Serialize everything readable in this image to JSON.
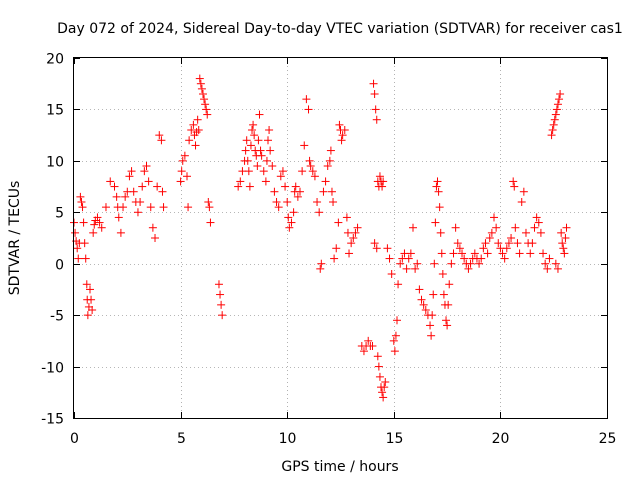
{
  "chart_data": {
    "type": "scatter",
    "title": "Day 072 of 2024, Sidereal Day-to-day VTEC variation (SDTVAR) for receiver cas1",
    "xlabel": "GPS time / hours",
    "ylabel": "SDTVAR / TECUs",
    "xlim": [
      0,
      25
    ],
    "ylim": [
      -15,
      20
    ],
    "xticks": [
      "0",
      "5",
      "10",
      "15",
      "20",
      "25"
    ],
    "yticks": [
      "-15",
      "-10",
      "-5",
      "0",
      "5",
      "10",
      "15",
      "20"
    ],
    "grid": true,
    "marker": "+",
    "color": "#ff0000",
    "series": [
      {
        "name": "SDTVAR",
        "points": [
          [
            0.0,
            4.0
          ],
          [
            0.05,
            3.0
          ],
          [
            0.1,
            2.2
          ],
          [
            0.15,
            1.5
          ],
          [
            0.2,
            0.5
          ],
          [
            0.25,
            2.0
          ],
          [
            0.3,
            6.5
          ],
          [
            0.35,
            6.0
          ],
          [
            0.4,
            5.5
          ],
          [
            0.45,
            4.0
          ],
          [
            0.5,
            2.0
          ],
          [
            0.55,
            0.5
          ],
          [
            0.6,
            -2.0
          ],
          [
            0.62,
            -3.5
          ],
          [
            0.65,
            -5.0
          ],
          [
            0.7,
            -4.2
          ],
          [
            0.75,
            -2.5
          ],
          [
            0.8,
            -3.5
          ],
          [
            0.85,
            -4.5
          ],
          [
            0.9,
            3.0
          ],
          [
            0.95,
            3.8
          ],
          [
            1.0,
            4.2
          ],
          [
            1.1,
            4.5
          ],
          [
            1.2,
            4.0
          ],
          [
            1.3,
            3.5
          ],
          [
            1.5,
            5.5
          ],
          [
            1.7,
            8.0
          ],
          [
            1.9,
            7.5
          ],
          [
            2.0,
            6.5
          ],
          [
            2.05,
            5.5
          ],
          [
            2.1,
            4.5
          ],
          [
            2.2,
            3.0
          ],
          [
            2.3,
            5.5
          ],
          [
            2.4,
            6.5
          ],
          [
            2.5,
            7.0
          ],
          [
            2.6,
            8.5
          ],
          [
            2.7,
            9.0
          ],
          [
            2.8,
            7.0
          ],
          [
            2.9,
            6.0
          ],
          [
            3.0,
            5.0
          ],
          [
            3.1,
            6.0
          ],
          [
            3.2,
            7.5
          ],
          [
            3.3,
            9.0
          ],
          [
            3.4,
            9.5
          ],
          [
            3.5,
            8.0
          ],
          [
            3.6,
            5.5
          ],
          [
            3.7,
            3.5
          ],
          [
            3.8,
            2.5
          ],
          [
            3.9,
            7.5
          ],
          [
            4.0,
            12.5
          ],
          [
            4.1,
            12.0
          ],
          [
            4.15,
            7.0
          ],
          [
            4.2,
            5.5
          ],
          [
            5.0,
            8.0
          ],
          [
            5.05,
            9.0
          ],
          [
            5.1,
            10.0
          ],
          [
            5.2,
            10.5
          ],
          [
            5.3,
            8.5
          ],
          [
            5.35,
            5.5
          ],
          [
            5.4,
            12.0
          ],
          [
            5.5,
            13.0
          ],
          [
            5.6,
            13.5
          ],
          [
            5.65,
            12.5
          ],
          [
            5.7,
            11.5
          ],
          [
            5.75,
            12.8
          ],
          [
            5.8,
            14.0
          ],
          [
            5.85,
            13.0
          ],
          [
            5.9,
            18.0
          ],
          [
            5.95,
            17.5
          ],
          [
            6.0,
            17.0
          ],
          [
            6.05,
            16.5
          ],
          [
            6.1,
            16.0
          ],
          [
            6.15,
            15.5
          ],
          [
            6.2,
            15.0
          ],
          [
            6.25,
            14.5
          ],
          [
            6.3,
            6.0
          ],
          [
            6.35,
            5.5
          ],
          [
            6.4,
            4.0
          ],
          [
            6.8,
            -2.0
          ],
          [
            6.85,
            -3.0
          ],
          [
            6.9,
            -4.0
          ],
          [
            6.95,
            -5.0
          ],
          [
            7.7,
            7.5
          ],
          [
            7.8,
            8.0
          ],
          [
            7.9,
            9.0
          ],
          [
            8.0,
            10.0
          ],
          [
            8.05,
            11.0
          ],
          [
            8.1,
            12.0
          ],
          [
            8.15,
            10.0
          ],
          [
            8.2,
            9.0
          ],
          [
            8.25,
            7.5
          ],
          [
            8.3,
            11.5
          ],
          [
            8.35,
            13.0
          ],
          [
            8.4,
            13.5
          ],
          [
            8.45,
            12.5
          ],
          [
            8.5,
            11.0
          ],
          [
            8.55,
            10.5
          ],
          [
            8.6,
            9.5
          ],
          [
            8.65,
            12.0
          ],
          [
            8.7,
            14.5
          ],
          [
            8.75,
            11.0
          ],
          [
            8.8,
            10.5
          ],
          [
            8.9,
            9.0
          ],
          [
            9.0,
            8.0
          ],
          [
            9.05,
            10.0
          ],
          [
            9.1,
            12.0
          ],
          [
            9.15,
            13.0
          ],
          [
            9.2,
            11.0
          ],
          [
            9.3,
            9.5
          ],
          [
            9.4,
            7.0
          ],
          [
            9.5,
            6.0
          ],
          [
            9.6,
            5.5
          ],
          [
            9.7,
            8.5
          ],
          [
            9.8,
            9.0
          ],
          [
            9.9,
            7.5
          ],
          [
            10.0,
            6.0
          ],
          [
            10.05,
            4.5
          ],
          [
            10.1,
            3.5
          ],
          [
            10.2,
            4.0
          ],
          [
            10.3,
            5.0
          ],
          [
            10.35,
            7.0
          ],
          [
            10.4,
            7.5
          ],
          [
            10.5,
            6.5
          ],
          [
            10.6,
            7.0
          ],
          [
            10.7,
            9.0
          ],
          [
            10.8,
            11.5
          ],
          [
            10.9,
            16.0
          ],
          [
            11.0,
            15.0
          ],
          [
            11.05,
            10.0
          ],
          [
            11.1,
            9.5
          ],
          [
            11.2,
            9.0
          ],
          [
            11.3,
            8.5
          ],
          [
            11.4,
            6.0
          ],
          [
            11.5,
            5.0
          ],
          [
            11.55,
            -0.5
          ],
          [
            11.6,
            0.0
          ],
          [
            11.7,
            7.0
          ],
          [
            11.8,
            8.0
          ],
          [
            11.9,
            9.5
          ],
          [
            12.0,
            10.0
          ],
          [
            12.05,
            11.0
          ],
          [
            12.1,
            7.0
          ],
          [
            12.15,
            6.0
          ],
          [
            12.2,
            0.5
          ],
          [
            12.3,
            1.5
          ],
          [
            12.4,
            4.0
          ],
          [
            12.45,
            13.5
          ],
          [
            12.5,
            13.0
          ],
          [
            12.55,
            12.0
          ],
          [
            12.6,
            12.5
          ],
          [
            12.7,
            13.0
          ],
          [
            12.8,
            4.5
          ],
          [
            12.85,
            3.0
          ],
          [
            12.9,
            1.0
          ],
          [
            13.0,
            2.0
          ],
          [
            13.1,
            2.5
          ],
          [
            13.2,
            3.0
          ],
          [
            13.3,
            3.5
          ],
          [
            13.5,
            -8.0
          ],
          [
            13.6,
            -8.5
          ],
          [
            13.7,
            -8.0
          ],
          [
            13.8,
            -7.5
          ],
          [
            13.9,
            -8.0
          ],
          [
            14.0,
            -8.0
          ],
          [
            14.05,
            17.5
          ],
          [
            14.1,
            16.5
          ],
          [
            14.15,
            15.0
          ],
          [
            14.2,
            14.0
          ],
          [
            14.25,
            8.0
          ],
          [
            14.3,
            7.5
          ],
          [
            14.35,
            8.5
          ],
          [
            14.4,
            8.0
          ],
          [
            14.45,
            7.5
          ],
          [
            14.5,
            8.0
          ],
          [
            14.1,
            2.0
          ],
          [
            14.2,
            1.5
          ],
          [
            14.25,
            -9.0
          ],
          [
            14.3,
            -10.0
          ],
          [
            14.35,
            -11.0
          ],
          [
            14.4,
            -12.0
          ],
          [
            14.45,
            -12.5
          ],
          [
            14.5,
            -13.0
          ],
          [
            14.55,
            -12.0
          ],
          [
            14.6,
            -11.5
          ],
          [
            14.7,
            1.5
          ],
          [
            14.8,
            0.5
          ],
          [
            14.9,
            -1.0
          ],
          [
            15.0,
            -7.5
          ],
          [
            15.05,
            -8.5
          ],
          [
            15.1,
            -7.0
          ],
          [
            15.15,
            -5.5
          ],
          [
            15.2,
            -2.0
          ],
          [
            15.3,
            0.0
          ],
          [
            15.4,
            0.5
          ],
          [
            15.5,
            1.0
          ],
          [
            15.6,
            -0.5
          ],
          [
            15.7,
            0.5
          ],
          [
            15.8,
            1.0
          ],
          [
            15.9,
            3.5
          ],
          [
            16.0,
            -0.5
          ],
          [
            16.1,
            0.0
          ],
          [
            16.2,
            -2.5
          ],
          [
            16.3,
            -3.5
          ],
          [
            16.4,
            -4.0
          ],
          [
            16.5,
            -4.5
          ],
          [
            16.6,
            -5.0
          ],
          [
            16.7,
            -6.0
          ],
          [
            16.75,
            -7.0
          ],
          [
            16.8,
            -5.0
          ],
          [
            16.85,
            -3.0
          ],
          [
            16.9,
            0.0
          ],
          [
            16.95,
            4.0
          ],
          [
            17.0,
            7.5
          ],
          [
            17.05,
            8.0
          ],
          [
            17.1,
            7.0
          ],
          [
            17.15,
            5.5
          ],
          [
            17.2,
            3.0
          ],
          [
            17.25,
            1.0
          ],
          [
            17.3,
            -1.0
          ],
          [
            17.35,
            -3.0
          ],
          [
            17.4,
            -4.0
          ],
          [
            17.45,
            -5.5
          ],
          [
            17.5,
            -6.0
          ],
          [
            17.55,
            -4.0
          ],
          [
            17.6,
            -2.0
          ],
          [
            17.7,
            0.0
          ],
          [
            17.8,
            1.0
          ],
          [
            17.9,
            3.5
          ],
          [
            18.0,
            2.0
          ],
          [
            18.1,
            1.5
          ],
          [
            18.2,
            1.0
          ],
          [
            18.3,
            0.5
          ],
          [
            18.4,
            0.0
          ],
          [
            18.5,
            -0.5
          ],
          [
            18.6,
            0.0
          ],
          [
            18.7,
            0.5
          ],
          [
            18.8,
            1.0
          ],
          [
            18.9,
            0.5
          ],
          [
            19.0,
            0.0
          ],
          [
            19.1,
            0.5
          ],
          [
            19.2,
            1.5
          ],
          [
            19.3,
            2.0
          ],
          [
            19.4,
            1.0
          ],
          [
            19.5,
            2.5
          ],
          [
            19.6,
            3.0
          ],
          [
            19.7,
            4.5
          ],
          [
            19.8,
            3.5
          ],
          [
            19.9,
            2.0
          ],
          [
            20.0,
            1.5
          ],
          [
            20.1,
            1.0
          ],
          [
            20.2,
            0.5
          ],
          [
            20.3,
            1.5
          ],
          [
            20.4,
            2.0
          ],
          [
            20.5,
            2.5
          ],
          [
            20.6,
            8.0
          ],
          [
            20.65,
            7.5
          ],
          [
            20.7,
            3.5
          ],
          [
            20.8,
            2.0
          ],
          [
            20.9,
            1.0
          ],
          [
            21.0,
            6.0
          ],
          [
            21.1,
            7.0
          ],
          [
            21.2,
            3.0
          ],
          [
            21.3,
            2.0
          ],
          [
            21.4,
            1.0
          ],
          [
            21.5,
            2.0
          ],
          [
            21.6,
            3.5
          ],
          [
            21.7,
            4.5
          ],
          [
            21.8,
            4.0
          ],
          [
            21.9,
            3.0
          ],
          [
            22.0,
            1.0
          ],
          [
            22.1,
            0.0
          ],
          [
            22.2,
            -0.5
          ],
          [
            22.3,
            0.5
          ],
          [
            22.4,
            12.5
          ],
          [
            22.45,
            13.0
          ],
          [
            22.5,
            13.5
          ],
          [
            22.55,
            14.0
          ],
          [
            22.6,
            14.5
          ],
          [
            22.65,
            15.0
          ],
          [
            22.7,
            15.5
          ],
          [
            22.75,
            16.0
          ],
          [
            22.8,
            16.5
          ],
          [
            22.85,
            3.0
          ],
          [
            22.9,
            2.0
          ],
          [
            22.95,
            1.5
          ],
          [
            23.0,
            1.0
          ],
          [
            23.05,
            2.5
          ],
          [
            23.1,
            3.5
          ],
          [
            22.6,
            0.0
          ],
          [
            22.7,
            -0.5
          ]
        ]
      }
    ]
  }
}
